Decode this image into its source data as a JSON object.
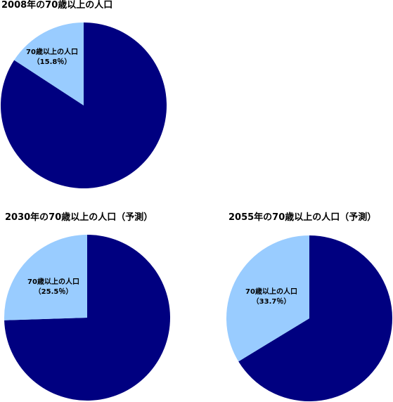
{
  "colors": {
    "remaining": "#000080",
    "age_70_plus": "#99CCFF"
  },
  "chart_data": [
    {
      "type": "pie",
      "title": "2008年の70歳以上の人口",
      "slices": [
        {
          "label": "70歳以上の人口",
          "value": 15.8,
          "value_label": "（15.8％）",
          "color": "#99CCFF"
        },
        {
          "label": "",
          "value": 84.2,
          "color": "#000080"
        }
      ]
    },
    {
      "type": "pie",
      "title": "2030年の70歳以上の人口（予測）",
      "slices": [
        {
          "label": "70歳以上の人口",
          "value": 25.5,
          "value_label": "（25.5％）",
          "color": "#99CCFF"
        },
        {
          "label": "",
          "value": 74.5,
          "color": "#000080"
        }
      ]
    },
    {
      "type": "pie",
      "title": "2055年の70歳以上の人口（予測）",
      "slices": [
        {
          "label": "70歳以上の人口",
          "value": 33.7,
          "value_label": "（33.7％）",
          "color": "#99CCFF"
        },
        {
          "label": "",
          "value": 66.3,
          "color": "#000080"
        }
      ]
    }
  ]
}
